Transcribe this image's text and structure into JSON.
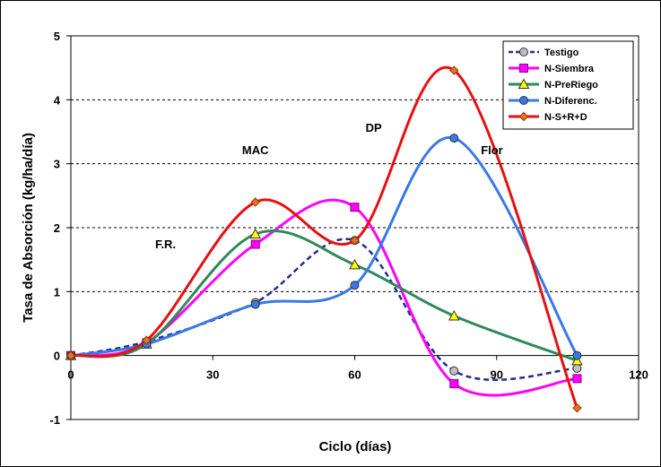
{
  "chart_data": {
    "type": "line",
    "title": "",
    "xlabel": "Ciclo (días)",
    "ylabel": "Tasa de Absorción (kg/ha/día)",
    "xlim": [
      0,
      120
    ],
    "ylim": [
      -1,
      5
    ],
    "xticks": [
      0,
      30,
      60,
      90,
      120
    ],
    "yticks": [
      -1,
      0,
      1,
      2,
      3,
      4,
      5
    ],
    "xtick_labels": [
      "0",
      "30",
      "60",
      "90",
      "120"
    ],
    "ytick_labels": [
      "-1",
      "0",
      "1",
      "2",
      "3",
      "4",
      "5"
    ],
    "grid": "horizontal dashed",
    "legend_position": "top-right",
    "annotations": [
      {
        "text": "F.R.",
        "x": 20,
        "y": 1.68
      },
      {
        "text": "MAC",
        "x": 39,
        "y": 3.15
      },
      {
        "text": "DP",
        "x": 64,
        "y": 3.5
      },
      {
        "text": "Flor",
        "x": 89,
        "y": 3.15
      }
    ],
    "series": [
      {
        "name": "Testigo",
        "color": "#1f2f8a",
        "marker": "circle",
        "marker_fill": "#c0c0c0",
        "dashed": true,
        "x": [
          0,
          16,
          39,
          60,
          81,
          107
        ],
        "y": [
          0,
          0.22,
          0.83,
          1.8,
          -0.24,
          -0.2
        ]
      },
      {
        "name": "N-Siembra",
        "color": "#ff00ff",
        "marker": "square",
        "marker_fill": "#ff00ff",
        "dashed": false,
        "x": [
          0,
          16,
          39,
          60,
          81,
          107
        ],
        "y": [
          0,
          0.2,
          1.74,
          2.32,
          -0.44,
          -0.36
        ]
      },
      {
        "name": "N-PreRiego",
        "color": "#2e8b57",
        "marker": "triangle",
        "marker_fill": "#ffff00",
        "dashed": false,
        "x": [
          0,
          16,
          39,
          60,
          81,
          107
        ],
        "y": [
          0,
          0.18,
          1.9,
          1.42,
          0.62,
          -0.08
        ]
      },
      {
        "name": "N-Diferenc.",
        "color": "#3a78e8",
        "marker": "circle",
        "marker_fill": "#3a78e8",
        "dashed": false,
        "x": [
          0,
          16,
          39,
          60,
          81,
          107
        ],
        "y": [
          0,
          0.18,
          0.8,
          1.1,
          3.4,
          0
        ]
      },
      {
        "name": "N-S+R+D",
        "color": "#e81010",
        "marker": "diamond",
        "marker_fill": "#f07020",
        "dashed": false,
        "x": [
          0,
          16,
          39,
          60,
          81,
          107
        ],
        "y": [
          0,
          0.24,
          2.4,
          1.8,
          4.46,
          -0.82
        ]
      }
    ]
  }
}
